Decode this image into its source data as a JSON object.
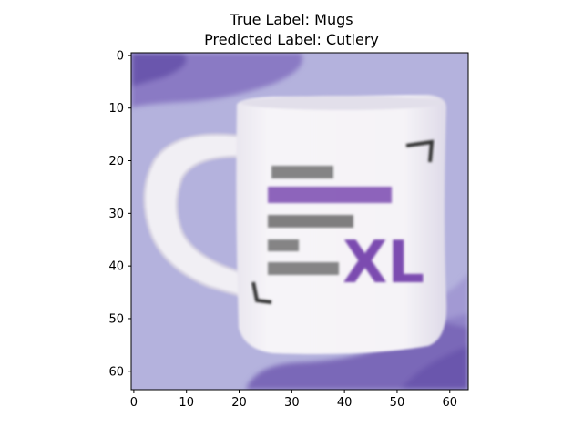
{
  "figure": {
    "title_line1": "True Label: Mugs",
    "title_line2": "Predicted Label: Cutlery"
  },
  "axes": {
    "x_ticks": [
      "0",
      "10",
      "20",
      "30",
      "40",
      "50",
      "60"
    ],
    "y_ticks": [
      "0",
      "10",
      "20",
      "30",
      "40",
      "50",
      "60"
    ],
    "xlim": [
      -0.5,
      63.5
    ],
    "ylim": [
      63.5,
      -0.5
    ]
  },
  "image": {
    "subject": "white mug",
    "mug_text_large": "XL",
    "colors": {
      "background": "#b4b2dd",
      "background_dark": "#7a68b8",
      "mug_body": "#f4f2f6",
      "mug_shadow": "#dcd8e8",
      "text_purple": "#7b4bb0",
      "text_dark": "#555555"
    }
  }
}
